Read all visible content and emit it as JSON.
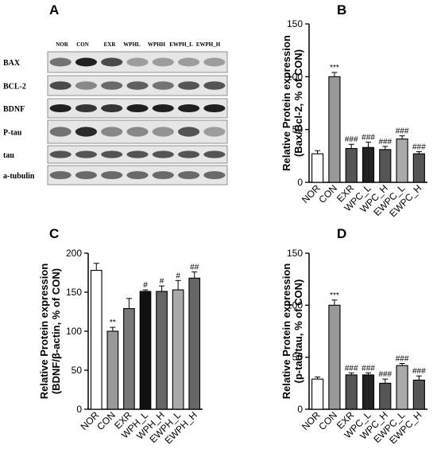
{
  "panel_a": {
    "letter": "A",
    "lanes": [
      "NOR",
      "CON",
      "EXR",
      "WPHL",
      "WPHH",
      "EWPH_L",
      "EWPH_H"
    ],
    "rows": [
      "BAX",
      "BCL-2",
      "BDNF",
      "P-tau",
      "tau",
      "a-tubulin"
    ]
  },
  "chart_data": [
    {
      "panel": "B",
      "type": "bar",
      "ylabel": "Relative Protein expression (Bax/Bcl-2, % of CON)",
      "ylim": [
        0,
        150
      ],
      "yticks": [
        0,
        50,
        100,
        150
      ],
      "categories": [
        "NOR",
        "CON",
        "EXR",
        "WPC_L",
        "WPC_H",
        "EWPC_L",
        "EWPC_H"
      ],
      "values": [
        27,
        100,
        32,
        33,
        31,
        41,
        27
      ],
      "errors": [
        3,
        4,
        4,
        5,
        3,
        3,
        2
      ],
      "significance": [
        "",
        "***",
        "###",
        "###",
        "###",
        "###",
        "###"
      ],
      "fills": [
        "#ffffff",
        "#999999",
        "#555555",
        "#222222",
        "#555555",
        "#aaaaaa",
        "#555555"
      ]
    },
    {
      "panel": "C",
      "type": "bar",
      "ylabel": "Relative Protein expression (BDNF/β-actin, % of CON)",
      "ylim": [
        0,
        200
      ],
      "yticks": [
        0,
        50,
        100,
        150,
        200
      ],
      "categories": [
        "NOR",
        "CON",
        "EXR",
        "WPH_L",
        "WPH_H",
        "EWPH_L",
        "EWPH_H"
      ],
      "values": [
        178,
        100,
        129,
        151,
        151,
        153,
        168
      ],
      "errors": [
        9,
        5,
        13,
        2,
        7,
        12,
        8
      ],
      "significance": [
        "",
        "**",
        "",
        "#",
        "#",
        "#",
        "##"
      ],
      "fills": [
        "#ffffff",
        "#999999",
        "#777777",
        "#111111",
        "#666666",
        "#aaaaaa",
        "#666666"
      ]
    },
    {
      "panel": "D",
      "type": "bar",
      "ylabel": "Relative Protein expression (p-tau/tau, % of CON)",
      "ylim": [
        0,
        150
      ],
      "yticks": [
        0,
        50,
        100,
        150
      ],
      "categories": [
        "NOR",
        "CON",
        "EXR",
        "WPC_L",
        "WPC_H",
        "EWPC_L",
        "EWPC_H"
      ],
      "values": [
        29,
        100,
        33,
        33,
        25,
        42,
        28
      ],
      "errors": [
        2,
        5,
        2,
        2,
        4,
        2,
        4
      ],
      "significance": [
        "",
        "***",
        "###",
        "###",
        "###",
        "###",
        "###"
      ],
      "fills": [
        "#ffffff",
        "#999999",
        "#555555",
        "#222222",
        "#555555",
        "#aaaaaa",
        "#555555"
      ]
    }
  ]
}
